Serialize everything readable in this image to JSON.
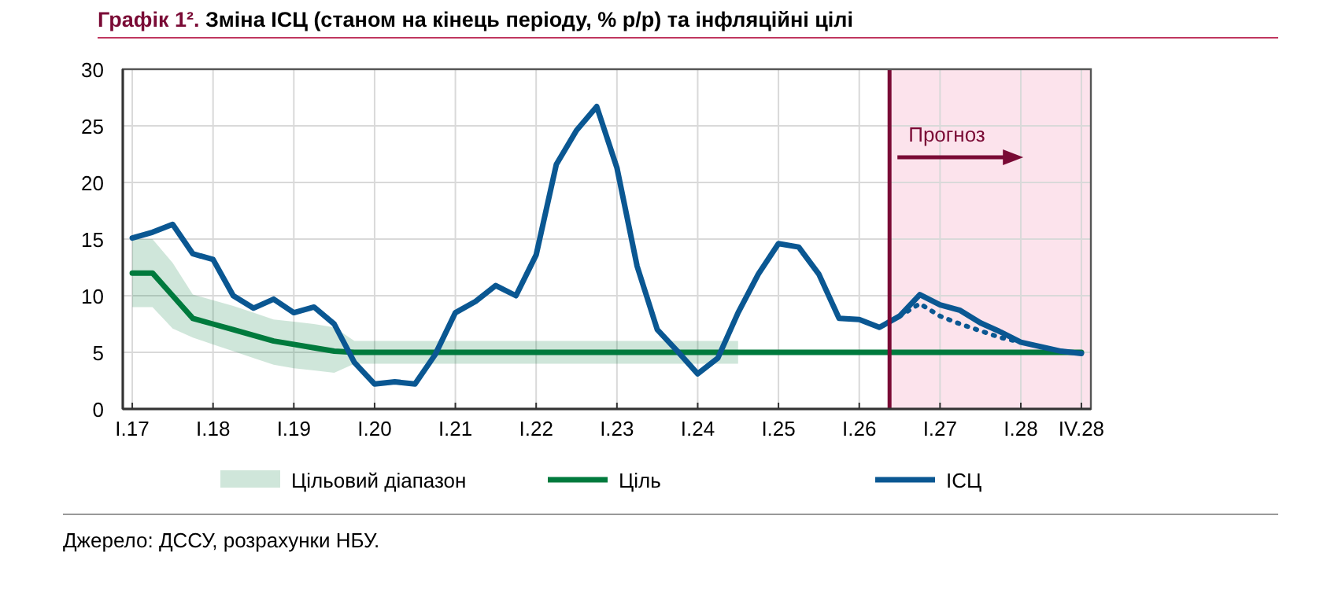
{
  "chart_data": {
    "type": "line",
    "title": "Графік 1². Зміна ІСЦ (станом на кінець періоду, % р/р) та інфляційні цілі",
    "categories": [
      "I.17",
      null,
      null,
      null,
      "I.18",
      null,
      null,
      null,
      "I.19",
      null,
      null,
      null,
      "I.20",
      null,
      null,
      null,
      "I.21",
      null,
      null,
      null,
      "I.22",
      null,
      null,
      null,
      "I.23",
      null,
      null,
      null,
      "I.24",
      null,
      null,
      null,
      "I.25",
      null,
      null,
      null,
      "I.26",
      null,
      null,
      null,
      "I.27",
      null,
      null,
      null,
      "I.28",
      null,
      null,
      "IV.28"
    ],
    "series": [
      {
        "name": "Ціль",
        "color": "#007a3d",
        "values": [
          12,
          12,
          10,
          8,
          7.5,
          7,
          6.5,
          6,
          5.7,
          5.4,
          5.1,
          5,
          5,
          5,
          5,
          5,
          5,
          5,
          5,
          5,
          5,
          5,
          5,
          5,
          5,
          5,
          5,
          5,
          5,
          5,
          5,
          5,
          5,
          5,
          5,
          5,
          5,
          5,
          5,
          5,
          5,
          5,
          5,
          5,
          5,
          5,
          5,
          5
        ],
        "lower": [
          9,
          9,
          7.1,
          6.3,
          5.7,
          5.1,
          4.5,
          3.9,
          3.6,
          3.4,
          3.2,
          4,
          4,
          4,
          4,
          4,
          4,
          4,
          4,
          4,
          4,
          4,
          4,
          4,
          4,
          4,
          4,
          4,
          4,
          4,
          4,
          null,
          null,
          null,
          null,
          null,
          null,
          null,
          null,
          null,
          null,
          null,
          null,
          null,
          null,
          null,
          null,
          null
        ],
        "upper": [
          15,
          15,
          12.9,
          10.1,
          9.6,
          9.1,
          8.5,
          7.9,
          7.7,
          7.5,
          7.2,
          6,
          6,
          6,
          6,
          6,
          6,
          6,
          6,
          6,
          6,
          6,
          6,
          6,
          6,
          6,
          6,
          6,
          6,
          6,
          6,
          null,
          null,
          null,
          null,
          null,
          null,
          null,
          null,
          null,
          null,
          null,
          null,
          null,
          null,
          null,
          null,
          null
        ]
      },
      {
        "name": "ІСЦ",
        "color": "#0a5792",
        "values": [
          15.1,
          15.6,
          16.3,
          13.7,
          13.2,
          10.0,
          8.9,
          9.7,
          8.5,
          9.0,
          7.5,
          4.1,
          2.2,
          2.4,
          2.2,
          4.8,
          8.5,
          9.5,
          10.9,
          10.0,
          13.6,
          21.6,
          24.6,
          26.7,
          21.3,
          12.6,
          7.0,
          5.1,
          3.1,
          4.5,
          8.5,
          11.9,
          14.6,
          14.3,
          11.9,
          8.0,
          7.9,
          7.2,
          8.2,
          10.1,
          9.2,
          8.7,
          7.6,
          6.8,
          5.9,
          5.5,
          5.1,
          4.9
        ]
      },
      {
        "color": "#0a5792",
        "line_style": "dotted",
        "values": [
          null,
          null,
          null,
          null,
          null,
          null,
          null,
          null,
          null,
          null,
          null,
          null,
          null,
          null,
          null,
          null,
          null,
          null,
          null,
          null,
          null,
          null,
          null,
          null,
          null,
          null,
          null,
          null,
          null,
          null,
          null,
          null,
          null,
          null,
          null,
          null,
          null,
          null,
          8.2,
          9.3,
          8.2,
          7.5,
          6.9,
          6.3,
          5.9,
          null,
          null,
          null
        ]
      }
    ],
    "ylim": [
      0,
      30
    ],
    "yticks": [
      0,
      5,
      10,
      15,
      20,
      25,
      30
    ],
    "grid": true,
    "legend": "bottom",
    "annotations": [
      "Цільовий діапазон",
      "Прогноз",
      "Джерело: ДССУ, розрахунки НБУ."
    ]
  }
}
